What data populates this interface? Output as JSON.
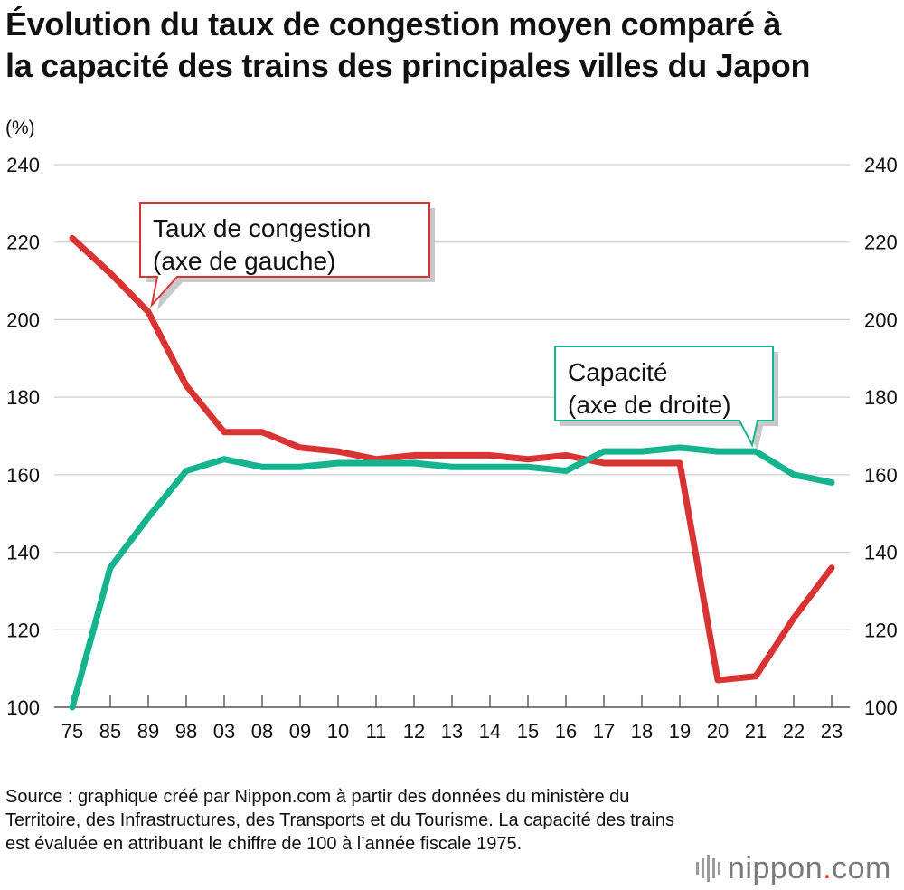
{
  "title_lines": [
    "Évolution du taux de congestion moyen comparé à",
    "la capacité des trains des principales villes du Japon"
  ],
  "source_text": "Source : graphique créé par Nippon.com à partir des données du ministère du Territoire, des Infrastructures, des Transports et du Tourisme. La capacité des trains est évaluée en attribuant le chiffre de 100 à l’année fiscale 1975.",
  "logo": {
    "word": "nippon",
    "dot": ".",
    "suffix": "com",
    "bars_icon": "sound-bars-icon"
  },
  "chart_data": {
    "type": "line",
    "unit_label": "(%)",
    "categories": [
      "75",
      "85",
      "89",
      "98",
      "03",
      "08",
      "09",
      "10",
      "11",
      "12",
      "13",
      "14",
      "15",
      "16",
      "17",
      "18",
      "19",
      "20",
      "21",
      "22",
      "23"
    ],
    "ylim": [
      100,
      240
    ],
    "yticks": [
      100,
      120,
      140,
      160,
      180,
      200,
      220,
      240
    ],
    "grid": true,
    "dual_axis": true,
    "series": [
      {
        "key": "congestion",
        "axis": "left",
        "color": "#d93434",
        "label_lines": [
          "Taux de congestion",
          "(axe de gauche)"
        ],
        "values": [
          221,
          212,
          202,
          183,
          171,
          171,
          167,
          166,
          164,
          165,
          165,
          165,
          164,
          165,
          163,
          163,
          163,
          107,
          108,
          123,
          136
        ]
      },
      {
        "key": "capacity",
        "axis": "right",
        "color": "#16b48e",
        "label_lines": [
          "Capacité",
          "(axe de droite)"
        ],
        "values": [
          100,
          136,
          149,
          161,
          164,
          162,
          162,
          163,
          163,
          163,
          162,
          162,
          162,
          161,
          166,
          166,
          167,
          166,
          166,
          160,
          158
        ]
      }
    ]
  }
}
